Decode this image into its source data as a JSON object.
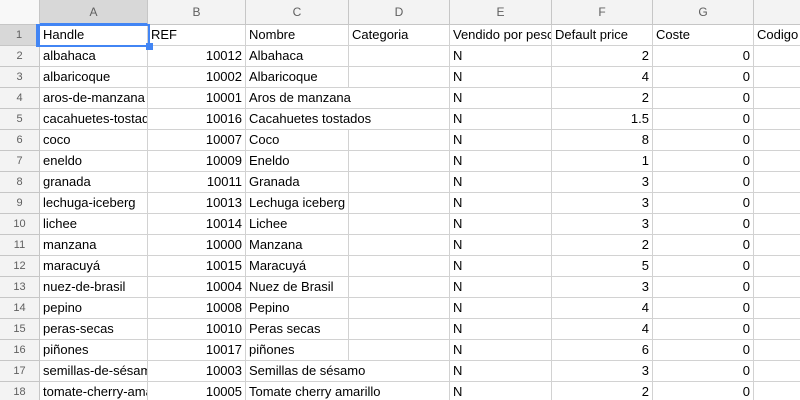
{
  "spreadsheet": {
    "corner_label": "",
    "column_letters": [
      "A",
      "B",
      "C",
      "D",
      "E",
      "F",
      "G",
      ""
    ],
    "selected": {
      "cell": "A1",
      "column_letter": "A",
      "row_number": "1",
      "value": "Handle"
    },
    "overflow": {
      "column": "C",
      "row_numbers": [
        4,
        5,
        17,
        18
      ]
    },
    "rows": [
      {
        "num": "1",
        "cells": [
          "Handle",
          "REF",
          "Nombre",
          "Categoria",
          "Vendido por peso",
          "Default price",
          "Coste",
          "Codigo"
        ]
      },
      {
        "num": "2",
        "cells": [
          "albahaca",
          "10012",
          "Albahaca",
          "",
          "N",
          "2",
          "0",
          ""
        ]
      },
      {
        "num": "3",
        "cells": [
          "albaricoque",
          "10002",
          "Albaricoque",
          "",
          "N",
          "4",
          "0",
          ""
        ]
      },
      {
        "num": "4",
        "cells": [
          "aros-de-manzana",
          "10001",
          "Aros de manzana",
          "",
          "N",
          "2",
          "0",
          ""
        ]
      },
      {
        "num": "5",
        "cells": [
          "cacahuetes-tostados",
          "10016",
          "Cacahuetes tostados",
          "",
          "N",
          "1.5",
          "0",
          ""
        ]
      },
      {
        "num": "6",
        "cells": [
          "coco",
          "10007",
          "Coco",
          "",
          "N",
          "8",
          "0",
          ""
        ]
      },
      {
        "num": "7",
        "cells": [
          "eneldo",
          "10009",
          "Eneldo",
          "",
          "N",
          "1",
          "0",
          ""
        ]
      },
      {
        "num": "8",
        "cells": [
          "granada",
          "10011",
          "Granada",
          "",
          "N",
          "3",
          "0",
          ""
        ]
      },
      {
        "num": "9",
        "cells": [
          "lechuga-iceberg",
          "10013",
          "Lechuga iceberg",
          "",
          "N",
          "3",
          "0",
          ""
        ]
      },
      {
        "num": "10",
        "cells": [
          "lichee",
          "10014",
          "Lichee",
          "",
          "N",
          "3",
          "0",
          ""
        ]
      },
      {
        "num": "11",
        "cells": [
          "manzana",
          "10000",
          "Manzana",
          "",
          "N",
          "2",
          "0",
          ""
        ]
      },
      {
        "num": "12",
        "cells": [
          "maracuyá",
          "10015",
          "Maracuyá",
          "",
          "N",
          "5",
          "0",
          ""
        ]
      },
      {
        "num": "13",
        "cells": [
          "nuez-de-brasil",
          "10004",
          "Nuez de Brasil",
          "",
          "N",
          "3",
          "0",
          ""
        ]
      },
      {
        "num": "14",
        "cells": [
          "pepino",
          "10008",
          "Pepino",
          "",
          "N",
          "4",
          "0",
          ""
        ]
      },
      {
        "num": "15",
        "cells": [
          "peras-secas",
          "10010",
          "Peras secas",
          "",
          "N",
          "4",
          "0",
          ""
        ]
      },
      {
        "num": "16",
        "cells": [
          "piñones",
          "10017",
          "piñones",
          "",
          "N",
          "6",
          "0",
          ""
        ]
      },
      {
        "num": "17",
        "cells": [
          "semillas-de-sésamo",
          "10003",
          "Semillas de sésamo",
          "",
          "N",
          "3",
          "0",
          ""
        ]
      },
      {
        "num": "18",
        "cells": [
          "tomate-cherry-amarillo",
          "10005",
          "Tomate cherry amarillo",
          "",
          "N",
          "2",
          "0",
          ""
        ]
      }
    ],
    "colors": {
      "selection_blue": "#4285f4",
      "grid_line": "#d2d2d2",
      "header_border": "#c6c6c6",
      "header_bg": "#f3f3f3",
      "selected_header_bg": "#d8d8d8",
      "corner_bg": "#f8f8f8",
      "header_text": "#5f5f5f"
    }
  }
}
